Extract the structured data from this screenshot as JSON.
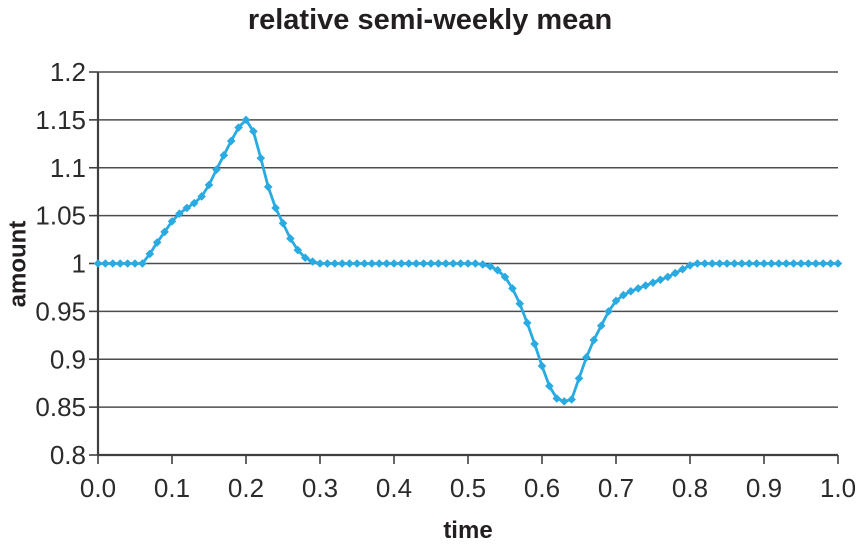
{
  "figure": {
    "background": "#ffffff",
    "text_color": "#231f20",
    "grid_color": "#4d4d4d",
    "axis_color": "#3f3f3f"
  },
  "chart_data": {
    "type": "line",
    "title": "relative semi-weekly mean",
    "xlabel": "time",
    "ylabel": "amount",
    "xlim": [
      0.0,
      1.0
    ],
    "ylim": [
      0.8,
      1.2
    ],
    "grid": "horizontal gridlines at every y tick",
    "legend": "none",
    "x_tick_values": [
      0.0,
      0.1,
      0.2,
      0.3,
      0.4,
      0.5,
      0.6,
      0.7,
      0.8,
      0.9,
      1.0
    ],
    "x_tick_labels": [
      "0.0",
      "0.1",
      "0.2",
      "0.3",
      "0.4",
      "0.5",
      "0.6",
      "0.7",
      "0.8",
      "0.9",
      "1.0"
    ],
    "y_tick_values": [
      0.8,
      0.85,
      0.9,
      0.95,
      1.0,
      1.05,
      1.1,
      1.15,
      1.2
    ],
    "y_tick_labels": [
      "0.8",
      "0.85",
      "0.9",
      "0.95",
      "1",
      "1.05",
      "1.1",
      "1.15",
      "1.2"
    ],
    "series": [
      {
        "name": "relative semi-weekly mean",
        "color": "#29abe2",
        "marker": "diamond",
        "x": [
          0.0,
          0.01,
          0.02,
          0.03,
          0.04,
          0.05,
          0.06,
          0.07,
          0.08,
          0.09,
          0.1,
          0.11,
          0.12,
          0.13,
          0.14,
          0.15,
          0.16,
          0.17,
          0.18,
          0.19,
          0.2,
          0.21,
          0.22,
          0.23,
          0.24,
          0.25,
          0.26,
          0.27,
          0.28,
          0.29,
          0.3,
          0.31,
          0.32,
          0.33,
          0.34,
          0.35,
          0.36,
          0.37,
          0.38,
          0.39,
          0.4,
          0.41,
          0.42,
          0.43,
          0.44,
          0.45,
          0.46,
          0.47,
          0.48,
          0.49,
          0.5,
          0.51,
          0.52,
          0.53,
          0.54,
          0.55,
          0.56,
          0.57,
          0.58,
          0.59,
          0.6,
          0.61,
          0.62,
          0.63,
          0.64,
          0.65,
          0.66,
          0.67,
          0.68,
          0.69,
          0.7,
          0.71,
          0.72,
          0.73,
          0.74,
          0.75,
          0.76,
          0.77,
          0.78,
          0.79,
          0.8,
          0.81,
          0.82,
          0.83,
          0.84,
          0.85,
          0.86,
          0.87,
          0.88,
          0.89,
          0.9,
          0.91,
          0.92,
          0.93,
          0.94,
          0.95,
          0.96,
          0.97,
          0.98,
          0.99,
          1.0
        ],
        "y": [
          1.0,
          1.0,
          1.0,
          1.0,
          1.0,
          1.0,
          1.0,
          1.01,
          1.022,
          1.033,
          1.044,
          1.052,
          1.058,
          1.063,
          1.07,
          1.082,
          1.098,
          1.113,
          1.128,
          1.142,
          1.15,
          1.138,
          1.11,
          1.08,
          1.058,
          1.042,
          1.026,
          1.014,
          1.006,
          1.002,
          1.0,
          1.0,
          1.0,
          1.0,
          1.0,
          1.0,
          1.0,
          1.0,
          1.0,
          1.0,
          1.0,
          1.0,
          1.0,
          1.0,
          1.0,
          1.0,
          1.0,
          1.0,
          1.0,
          1.0,
          1.0,
          1.0,
          0.999,
          0.997,
          0.993,
          0.986,
          0.974,
          0.958,
          0.938,
          0.916,
          0.893,
          0.872,
          0.859,
          0.856,
          0.858,
          0.88,
          0.902,
          0.92,
          0.935,
          0.95,
          0.961,
          0.967,
          0.971,
          0.974,
          0.977,
          0.98,
          0.983,
          0.986,
          0.99,
          0.994,
          0.998,
          1.0,
          1.0,
          1.0,
          1.0,
          1.0,
          1.0,
          1.0,
          1.0,
          1.0,
          1.0,
          1.0,
          1.0,
          1.0,
          1.0,
          1.0,
          1.0,
          1.0,
          1.0,
          1.0,
          1.0
        ]
      }
    ]
  }
}
